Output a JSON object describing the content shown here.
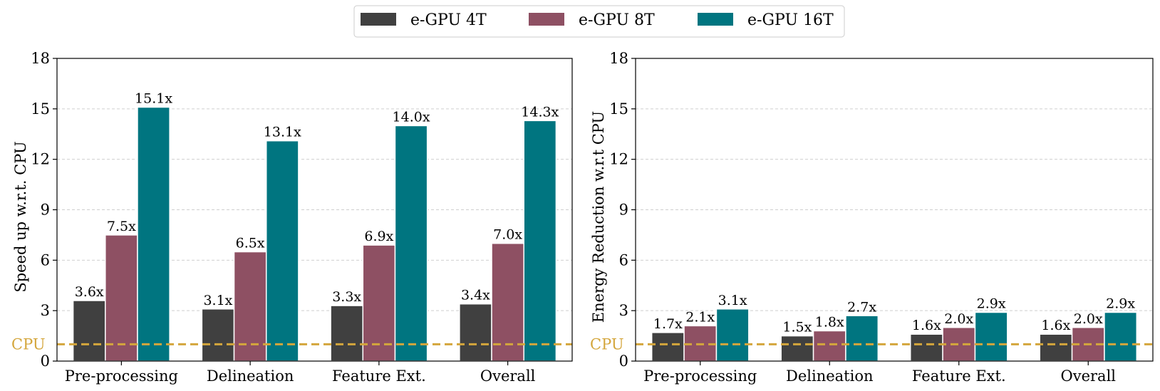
{
  "legend": {
    "items": [
      {
        "label": "e-GPU 4T",
        "color": "#404040"
      },
      {
        "label": "e-GPU 8T",
        "color": "#8e5063"
      },
      {
        "label": "e-GPU 16T",
        "color": "#007580"
      }
    ]
  },
  "baseline": {
    "label": "CPU",
    "value": 1,
    "color": "#d4a63c"
  },
  "chart_data": [
    {
      "type": "bar",
      "title": "",
      "xlabel": "",
      "ylabel": "Speed up w.r.t. CPU",
      "ylim": [
        0,
        18
      ],
      "yticks": [
        0,
        3,
        6,
        9,
        12,
        15,
        18
      ],
      "grid": true,
      "categories": [
        "Pre-processing",
        "Delineation",
        "Feature Ext.",
        "Overall"
      ],
      "series": [
        {
          "name": "e-GPU 4T",
          "values": [
            3.6,
            3.1,
            3.3,
            3.4
          ],
          "labels": [
            "3.6x",
            "3.1x",
            "3.3x",
            "3.4x"
          ]
        },
        {
          "name": "e-GPU 8T",
          "values": [
            7.5,
            6.5,
            6.9,
            7.0
          ],
          "labels": [
            "7.5x",
            "6.5x",
            "6.9x",
            "7.0x"
          ]
        },
        {
          "name": "e-GPU 16T",
          "values": [
            15.1,
            13.1,
            14.0,
            14.3
          ],
          "labels": [
            "15.1x",
            "13.1x",
            "14.0x",
            "14.3x"
          ]
        }
      ]
    },
    {
      "type": "bar",
      "title": "",
      "xlabel": "",
      "ylabel": "Energy Reduction w.r.t CPU",
      "ylim": [
        0,
        18
      ],
      "yticks": [
        0,
        3,
        6,
        9,
        12,
        15,
        18
      ],
      "grid": true,
      "categories": [
        "Pre-processing",
        "Delineation",
        "Feature Ext.",
        "Overall"
      ],
      "series": [
        {
          "name": "e-GPU 4T",
          "values": [
            1.7,
            1.5,
            1.6,
            1.6
          ],
          "labels": [
            "1.7x",
            "1.5x",
            "1.6x",
            "1.6x"
          ]
        },
        {
          "name": "e-GPU 8T",
          "values": [
            2.1,
            1.8,
            2.0,
            2.0
          ],
          "labels": [
            "2.1x",
            "1.8x",
            "2.0x",
            "2.0x"
          ]
        },
        {
          "name": "e-GPU 16T",
          "values": [
            3.1,
            2.7,
            2.9,
            2.9
          ],
          "labels": [
            "3.1x",
            "2.7x",
            "2.9x",
            "2.9x"
          ]
        }
      ]
    }
  ]
}
